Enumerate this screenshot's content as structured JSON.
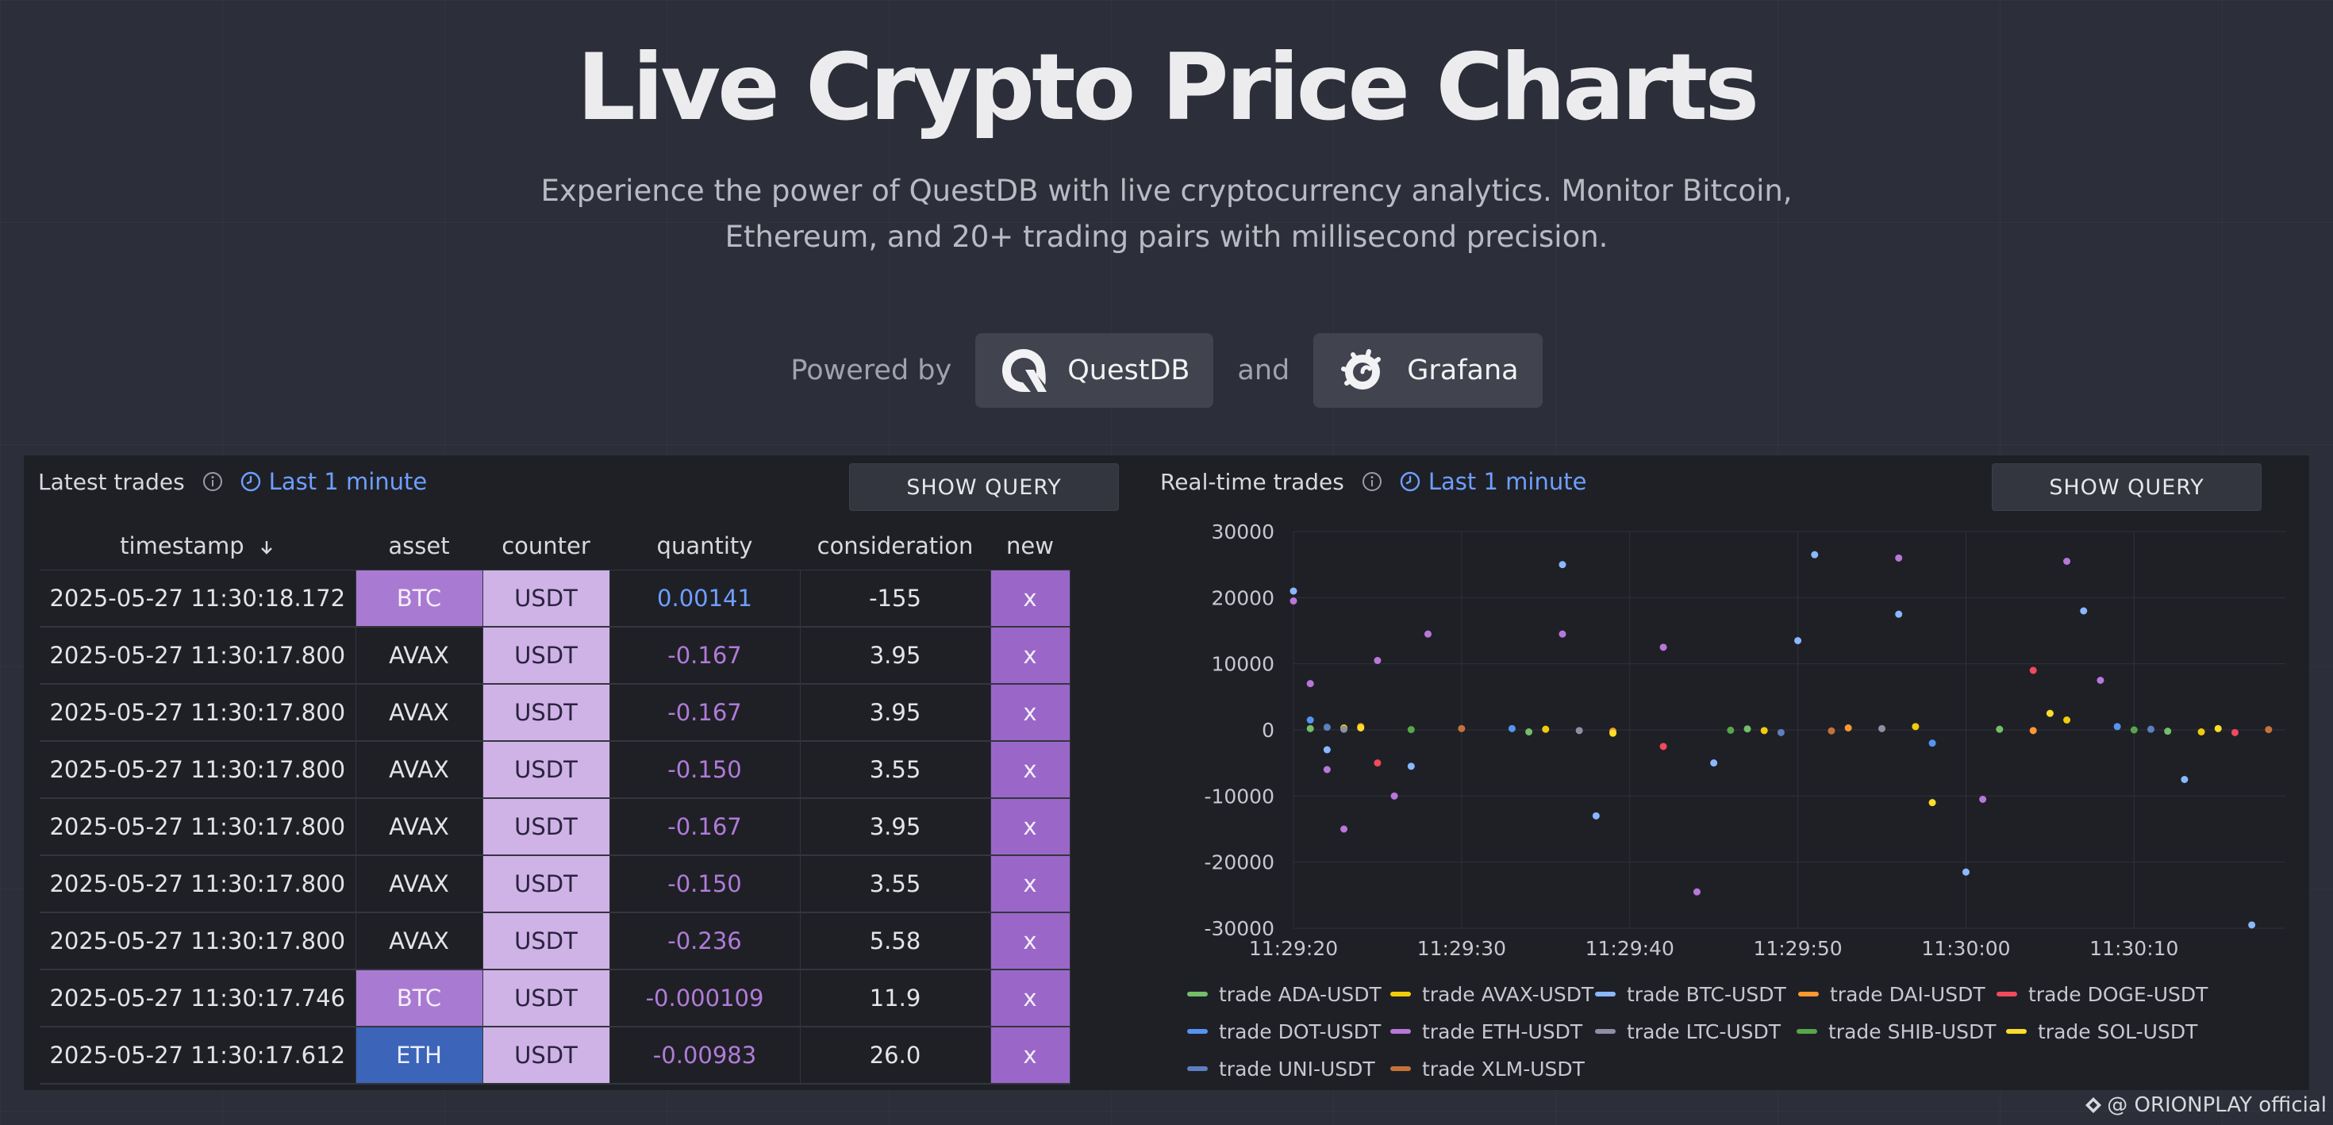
{
  "hero": {
    "title": "Live Crypto Price Charts",
    "subtitle_line1": "Experience the power of QuestDB with live cryptocurrency analytics. Monitor Bitcoin,",
    "subtitle_line2": "Ethereum, and 20+ trading pairs with millisecond precision.",
    "powered_by": "Powered by",
    "brand1": "QuestDB",
    "and": "and",
    "brand2": "Grafana"
  },
  "left_panel": {
    "title": "Latest trades",
    "time_range": "Last 1 minute",
    "show_query": "SHOW QUERY",
    "columns": [
      "timestamp",
      "asset",
      "counter",
      "quantity",
      "consideration",
      "new"
    ],
    "sort_icon": "arrow-down-icon",
    "rows": [
      {
        "timestamp": "2025-05-27 11:30:18.172",
        "asset": "BTC",
        "counter": "USDT",
        "quantity": "0.00141",
        "consideration": "-155",
        "new": "x"
      },
      {
        "timestamp": "2025-05-27 11:30:17.800",
        "asset": "AVAX",
        "counter": "USDT",
        "quantity": "-0.167",
        "consideration": "3.95",
        "new": "x"
      },
      {
        "timestamp": "2025-05-27 11:30:17.800",
        "asset": "AVAX",
        "counter": "USDT",
        "quantity": "-0.167",
        "consideration": "3.95",
        "new": "x"
      },
      {
        "timestamp": "2025-05-27 11:30:17.800",
        "asset": "AVAX",
        "counter": "USDT",
        "quantity": "-0.150",
        "consideration": "3.55",
        "new": "x"
      },
      {
        "timestamp": "2025-05-27 11:30:17.800",
        "asset": "AVAX",
        "counter": "USDT",
        "quantity": "-0.167",
        "consideration": "3.95",
        "new": "x"
      },
      {
        "timestamp": "2025-05-27 11:30:17.800",
        "asset": "AVAX",
        "counter": "USDT",
        "quantity": "-0.150",
        "consideration": "3.55",
        "new": "x"
      },
      {
        "timestamp": "2025-05-27 11:30:17.800",
        "asset": "AVAX",
        "counter": "USDT",
        "quantity": "-0.236",
        "consideration": "5.58",
        "new": "x"
      },
      {
        "timestamp": "2025-05-27 11:30:17.746",
        "asset": "BTC",
        "counter": "USDT",
        "quantity": "-0.000109",
        "consideration": "11.9",
        "new": "x"
      },
      {
        "timestamp": "2025-05-27 11:30:17.612",
        "asset": "ETH",
        "counter": "USDT",
        "quantity": "-0.00983",
        "consideration": "26.0",
        "new": "x"
      }
    ]
  },
  "right_panel": {
    "title": "Real-time trades",
    "time_range": "Last 1 minute",
    "show_query": "SHOW QUERY"
  },
  "chart_data": {
    "type": "scatter",
    "title": "Real-time trades",
    "xlabel": "",
    "ylabel": "",
    "x_ticks": [
      "11:29:20",
      "11:29:30",
      "11:29:40",
      "11:29:50",
      "11:30:00",
      "11:30:10"
    ],
    "y_ticks": [
      30000,
      20000,
      10000,
      0,
      -10000,
      -20000,
      -30000
    ],
    "ylim": [
      -30000,
      30000
    ],
    "xlim": [
      "11:29:20",
      "11:30:19"
    ],
    "grid": true,
    "legend_position": "bottom",
    "series": [
      {
        "name": "trade ADA-USDT",
        "color": "#73bf69",
        "points": [
          [
            "11:29:21",
            200
          ],
          [
            "11:29:34",
            -300
          ],
          [
            "11:29:47",
            150
          ],
          [
            "11:30:02",
            100
          ],
          [
            "11:30:12",
            -200
          ]
        ]
      },
      {
        "name": "trade AVAX-USDT",
        "color": "#f2cc0c",
        "points": [
          [
            "11:29:23",
            300
          ],
          [
            "11:29:35",
            100
          ],
          [
            "11:29:48",
            -100
          ],
          [
            "11:29:57",
            500
          ],
          [
            "11:30:06",
            1500
          ],
          [
            "11:30:14",
            -300
          ]
        ]
      },
      {
        "name": "trade BTC-USDT",
        "color": "#8ab8ff",
        "points": [
          [
            "11:29:20",
            21000
          ],
          [
            "11:29:22",
            -3000
          ],
          [
            "11:29:27",
            -5500
          ],
          [
            "11:29:36",
            25000
          ],
          [
            "11:29:38",
            -13000
          ],
          [
            "11:29:45",
            -5000
          ],
          [
            "11:29:50",
            13500
          ],
          [
            "11:29:51",
            26500
          ],
          [
            "11:29:56",
            17500
          ],
          [
            "11:30:00",
            -21500
          ],
          [
            "11:30:07",
            18000
          ],
          [
            "11:30:13",
            -7500
          ],
          [
            "11:30:17",
            -29500
          ]
        ]
      },
      {
        "name": "trade DAI-USDT",
        "color": "#ff9830",
        "points": [
          [
            "11:29:24",
            500
          ],
          [
            "11:29:39",
            -200
          ],
          [
            "11:29:53",
            300
          ],
          [
            "11:30:04",
            -100
          ]
        ]
      },
      {
        "name": "trade DOGE-USDT",
        "color": "#f2495c",
        "points": [
          [
            "11:29:25",
            -5000
          ],
          [
            "11:29:42",
            -2500
          ],
          [
            "11:30:04",
            9000
          ],
          [
            "11:30:16",
            -400
          ]
        ]
      },
      {
        "name": "trade DOT-USDT",
        "color": "#5794f2",
        "points": [
          [
            "11:29:21",
            1500
          ],
          [
            "11:29:33",
            200
          ],
          [
            "11:29:58",
            -2000
          ],
          [
            "11:30:09",
            500
          ]
        ]
      },
      {
        "name": "trade ETH-USDT",
        "color": "#b877d9",
        "points": [
          [
            "11:29:20",
            19500
          ],
          [
            "11:29:21",
            7000
          ],
          [
            "11:29:22",
            -6000
          ],
          [
            "11:29:23",
            -15000
          ],
          [
            "11:29:25",
            10500
          ],
          [
            "11:29:26",
            -10000
          ],
          [
            "11:29:28",
            14500
          ],
          [
            "11:29:36",
            14500
          ],
          [
            "11:29:42",
            12500
          ],
          [
            "11:29:44",
            -24500
          ],
          [
            "11:29:56",
            26000
          ],
          [
            "11:30:01",
            -10500
          ],
          [
            "11:30:06",
            25500
          ],
          [
            "11:30:08",
            7500
          ]
        ]
      },
      {
        "name": "trade LTC-USDT",
        "color": "#8f8fa3",
        "points": [
          [
            "11:29:23",
            100
          ],
          [
            "11:29:37",
            -100
          ],
          [
            "11:29:55",
            200
          ]
        ]
      },
      {
        "name": "trade SHIB-USDT",
        "color": "#56a64b",
        "points": [
          [
            "11:29:27",
            50
          ],
          [
            "11:29:46",
            -50
          ],
          [
            "11:30:10",
            0
          ]
        ]
      },
      {
        "name": "trade SOL-USDT",
        "color": "#fade2a",
        "points": [
          [
            "11:29:24",
            300
          ],
          [
            "11:29:39",
            -500
          ],
          [
            "11:29:58",
            -11000
          ],
          [
            "11:30:05",
            2500
          ],
          [
            "11:30:15",
            200
          ]
        ]
      },
      {
        "name": "trade UNI-USDT",
        "color": "#5e7fbf",
        "points": [
          [
            "11:29:22",
            400
          ],
          [
            "11:29:49",
            -400
          ],
          [
            "11:30:11",
            100
          ]
        ]
      },
      {
        "name": "trade XLM-USDT",
        "color": "#c4723a",
        "points": [
          [
            "11:29:30",
            200
          ],
          [
            "11:29:52",
            -150
          ],
          [
            "11:30:18",
            50
          ]
        ]
      }
    ]
  },
  "watermark": "@ ORIONPLAY official"
}
